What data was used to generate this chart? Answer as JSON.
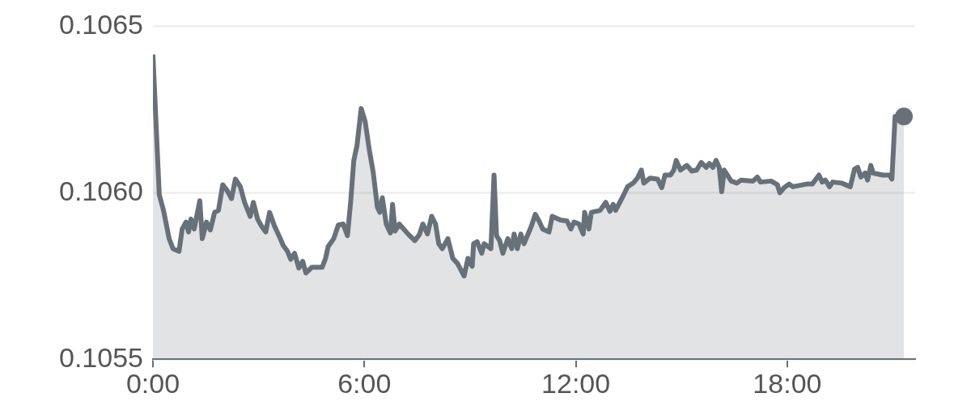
{
  "chart_data": {
    "type": "area",
    "xlim": [
      0,
      21.63
    ],
    "xticks": [
      {
        "value": 0,
        "label": "0:00"
      },
      {
        "value": 6,
        "label": "6:00"
      },
      {
        "value": 12,
        "label": "12:00"
      },
      {
        "value": 18,
        "label": "18:00"
      }
    ],
    "ylim": [
      0.1055,
      0.1065
    ],
    "yticks": [
      0.1055,
      {
        "value": 0.106,
        "label": "0.1060"
      },
      0.1065
    ],
    "grid": "y",
    "legend": false,
    "marker": "none",
    "line_style": "solid",
    "series": [
      {
        "color": "#68717a",
        "x": [
          0,
          0.18,
          0.3,
          0.46,
          0.57,
          0.74,
          0.83,
          0.94,
          1.01,
          1.08,
          1.17,
          1.33,
          1.4,
          1.52,
          1.63,
          1.75,
          1.86,
          1.98,
          2.11,
          2.23,
          2.34,
          2.48,
          2.6,
          2.76,
          2.85,
          2.97,
          3.08,
          3.2,
          3.31,
          3.45,
          3.59,
          3.7,
          3.82,
          3.91,
          4.02,
          4.14,
          4.25,
          4.34,
          4.51,
          4.8,
          4.9,
          4.97,
          5.13,
          5.26,
          5.4,
          5.52,
          5.61,
          5.7,
          5.79,
          5.91,
          6.02,
          6.14,
          6.25,
          6.37,
          6.44,
          6.51,
          6.62,
          6.74,
          6.8,
          6.87,
          6.99,
          7.24,
          7.43,
          7.56,
          7.66,
          7.79,
          7.91,
          8.02,
          8.11,
          8.21,
          8.37,
          8.51,
          8.64,
          8.83,
          8.94,
          9.06,
          9.1,
          9.2,
          9.33,
          9.4,
          9.59,
          9.68,
          9.75,
          9.84,
          9.93,
          10.07,
          10.18,
          10.25,
          10.34,
          10.44,
          10.53,
          10.74,
          10.85,
          10.97,
          11.06,
          11.24,
          11.33,
          11.56,
          11.75,
          11.86,
          11.95,
          12.09,
          12.21,
          12.25,
          12.37,
          12.44,
          12.69,
          12.85,
          12.97,
          13.06,
          13.13,
          13.36,
          13.47,
          13.63,
          13.75,
          13.86,
          13.93,
          14.11,
          14.32,
          14.44,
          14.53,
          14.69,
          14.78,
          14.85,
          14.97,
          15.15,
          15.29,
          15.43,
          15.56,
          15.7,
          15.79,
          15.89,
          15.98,
          16.07,
          16.14,
          16.21,
          16.41,
          16.57,
          16.69,
          17.03,
          17.15,
          17.24,
          17.54,
          17.72,
          17.79,
          17.91,
          18.05,
          18.16,
          18.55,
          18.71,
          18.9,
          18.99,
          19.08,
          19.2,
          19.29,
          19.54,
          19.79,
          19.91,
          20.0,
          20.09,
          20.21,
          20.28,
          20.37,
          20.44,
          20.71,
          20.9,
          20.97,
          21.06,
          21.31
        ],
        "values": [
          0.106415,
          0.105994,
          0.105947,
          0.105862,
          0.105832,
          0.105824,
          0.105891,
          0.105912,
          0.105882,
          0.105921,
          0.105891,
          0.105976,
          0.105862,
          0.105912,
          0.105888,
          0.105941,
          0.105947,
          0.106024,
          0.106006,
          0.105982,
          0.106041,
          0.106018,
          0.105971,
          0.105929,
          0.105971,
          0.105921,
          0.1059,
          0.105882,
          0.105941,
          0.1059,
          0.105868,
          0.105841,
          0.105824,
          0.1058,
          0.105818,
          0.105774,
          0.105794,
          0.105759,
          0.105776,
          0.105776,
          0.105803,
          0.105838,
          0.105862,
          0.105903,
          0.105906,
          0.105871,
          0.105971,
          0.106097,
          0.106141,
          0.106253,
          0.106215,
          0.106129,
          0.106062,
          0.105956,
          0.105941,
          0.105985,
          0.105906,
          0.105879,
          0.105965,
          0.105885,
          0.105906,
          0.105876,
          0.105856,
          0.105874,
          0.105906,
          0.105876,
          0.105929,
          0.105906,
          0.105847,
          0.105832,
          0.105862,
          0.105803,
          0.105788,
          0.10575,
          0.105803,
          0.105779,
          0.105847,
          0.105853,
          0.105818,
          0.105847,
          0.105832,
          0.106053,
          0.105871,
          0.105856,
          0.105818,
          0.105862,
          0.105832,
          0.105876,
          0.105832,
          0.105876,
          0.105847,
          0.1059,
          0.105935,
          0.105912,
          0.105891,
          0.105882,
          0.105929,
          0.105918,
          0.105915,
          0.105891,
          0.105912,
          0.105906,
          0.105876,
          0.105941,
          0.105891,
          0.105941,
          0.105947,
          0.105971,
          0.105944,
          0.105965,
          0.105947,
          0.105994,
          0.106018,
          0.106029,
          0.106044,
          0.106068,
          0.106029,
          0.106044,
          0.106041,
          0.106015,
          0.106053,
          0.106053,
          0.106068,
          0.106097,
          0.106068,
          0.106082,
          0.106065,
          0.106068,
          0.106091,
          0.106076,
          0.106088,
          0.106076,
          0.106097,
          0.106076,
          0.106003,
          0.106068,
          0.106035,
          0.106029,
          0.106038,
          0.106035,
          0.106047,
          0.106032,
          0.106035,
          0.106024,
          0.106,
          0.106015,
          0.106026,
          0.106018,
          0.106026,
          0.106026,
          0.106053,
          0.106032,
          0.106038,
          0.106018,
          0.106032,
          0.106029,
          0.106018,
          0.106071,
          0.106076,
          0.106047,
          0.106059,
          0.106038,
          0.106082,
          0.106059,
          0.106053,
          0.106053,
          0.106041,
          0.106229,
          0.106229
        ]
      },
      {
        "type": "scatter",
        "marker": "circle",
        "color": "#68717a",
        "x": [
          21.31
        ],
        "values": [
          0.106229
        ]
      }
    ]
  }
}
